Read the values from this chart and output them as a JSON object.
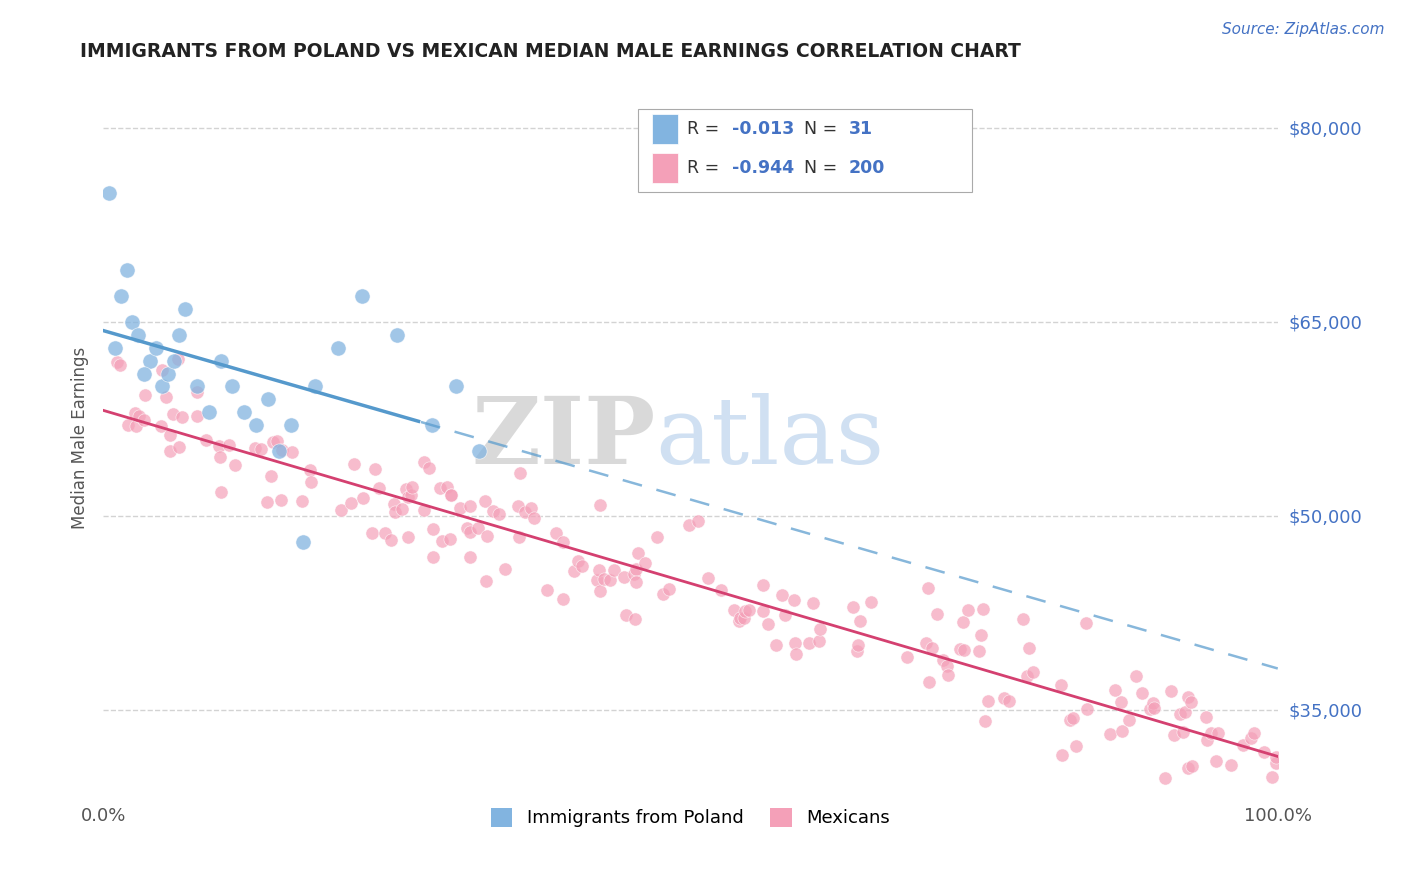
{
  "title": "IMMIGRANTS FROM POLAND VS MEXICAN MEDIAN MALE EARNINGS CORRELATION CHART",
  "source_text": "Source: ZipAtlas.com",
  "ylabel": "Median Male Earnings",
  "xlim": [
    0.0,
    1.0
  ],
  "ylim": [
    28000,
    84000
  ],
  "xticks": [
    0.0,
    1.0
  ],
  "xticklabels": [
    "0.0%",
    "100.0%"
  ],
  "ytick_values": [
    35000,
    50000,
    65000,
    80000
  ],
  "ytick_labels": [
    "$35,000",
    "$50,000",
    "$65,000",
    "$80,000"
  ],
  "poland_color": "#82b4e0",
  "mexican_color": "#f4a0b8",
  "mexican_line_color": "#d44070",
  "poland_line_color": "#5599cc",
  "poland_R": -0.013,
  "poland_N": 31,
  "mexican_R": -0.944,
  "mexican_N": 200,
  "legend_label_poland": "Immigrants from Poland",
  "legend_label_mexican": "Mexicans",
  "background_color": "#ffffff",
  "grid_color": "#c8c8c8",
  "title_color": "#222222",
  "axis_label_color": "#555555",
  "ytick_color": "#4472c4",
  "xtick_color": "#555555",
  "legend_color": "#4472c4",
  "poland_x": [
    0.01,
    0.005,
    0.02,
    0.015,
    0.025,
    0.03,
    0.04,
    0.035,
    0.045,
    0.05,
    0.055,
    0.06,
    0.065,
    0.07,
    0.08,
    0.09,
    0.1,
    0.11,
    0.12,
    0.13,
    0.14,
    0.15,
    0.16,
    0.17,
    0.18,
    0.2,
    0.22,
    0.25,
    0.28,
    0.3,
    0.32
  ],
  "poland_y": [
    63000,
    75000,
    69000,
    67000,
    65000,
    64000,
    62000,
    61000,
    63000,
    60000,
    61000,
    62000,
    64000,
    66000,
    60000,
    58000,
    62000,
    60000,
    58000,
    57000,
    59000,
    55000,
    57000,
    48000,
    60000,
    63000,
    67000,
    64000,
    57000,
    60000,
    55000
  ]
}
